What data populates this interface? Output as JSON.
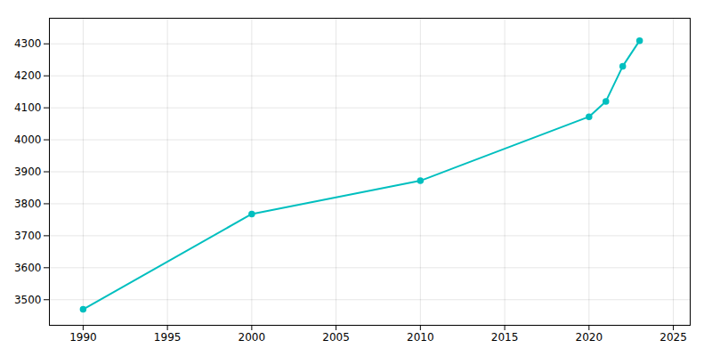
{
  "chart_data": {
    "type": "line",
    "x": [
      1990,
      2000,
      2010,
      2020,
      2021,
      2022,
      2023
    ],
    "values": [
      3470,
      3768,
      3872,
      4072,
      4120,
      4230,
      4310
    ],
    "color": "#00BFBF",
    "marker": "circle",
    "xlim": [
      1988,
      2026
    ],
    "ylim": [
      3420,
      4380
    ],
    "xticks": [
      1990,
      1995,
      2000,
      2005,
      2010,
      2015,
      2020,
      2025
    ],
    "yticks": [
      3500,
      3600,
      3700,
      3800,
      3900,
      4000,
      4100,
      4200,
      4300
    ],
    "grid": true
  }
}
